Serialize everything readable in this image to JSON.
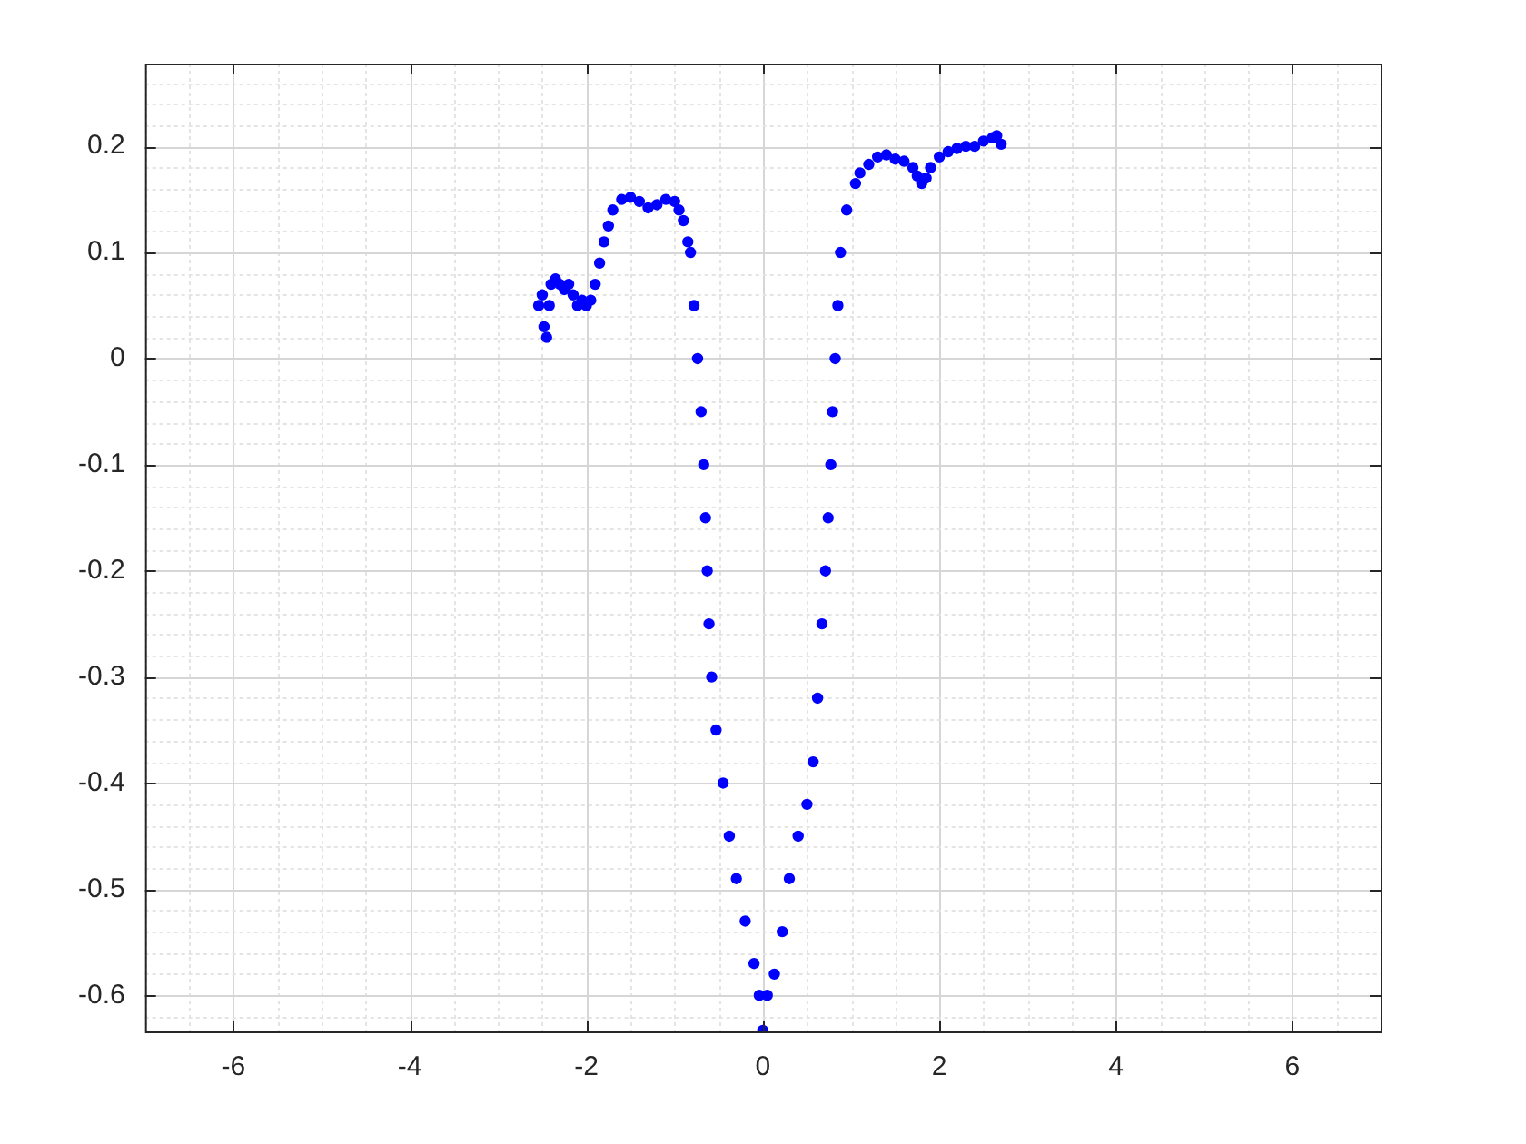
{
  "chart_data": {
    "type": "scatter",
    "marker": "circle",
    "grid": true,
    "xlim": [
      -7,
      7
    ],
    "ylim": [
      -0.634,
      0.278
    ],
    "xticks": [
      {
        "value": -7,
        "label": null
      },
      {
        "value": -6.5,
        "label": null
      },
      -6,
      {
        "value": -5.5,
        "label": null
      },
      {
        "value": -5,
        "label": null
      },
      {
        "value": -4.5,
        "label": null
      },
      -4,
      {
        "value": -3.5,
        "label": null
      },
      {
        "value": -3,
        "label": null
      },
      {
        "value": -2.5,
        "label": null
      },
      -2,
      {
        "value": -1.5,
        "label": null
      },
      {
        "value": -1,
        "label": null
      },
      {
        "value": -0.5,
        "label": null
      },
      0,
      {
        "value": 0.5,
        "label": null
      },
      {
        "value": 1,
        "label": null
      },
      {
        "value": 1.5,
        "label": null
      },
      2,
      {
        "value": 2.5,
        "label": null
      },
      {
        "value": 3,
        "label": null
      },
      {
        "value": 3.5,
        "label": null
      },
      4,
      {
        "value": 4.5,
        "label": null
      },
      {
        "value": 5,
        "label": null
      },
      {
        "value": 5.5,
        "label": null
      },
      6,
      {
        "value": 6.5,
        "label": null
      },
      {
        "value": 7,
        "label": null
      }
    ],
    "yticks": [
      {
        "value": -0.62,
        "label": null
      },
      -0.6,
      {
        "value": -0.58,
        "label": null
      },
      {
        "value": -0.56,
        "label": null
      },
      {
        "value": -0.54,
        "label": null
      },
      {
        "value": -0.52,
        "label": null
      },
      -0.5,
      {
        "value": -0.48,
        "label": null
      },
      {
        "value": -0.46,
        "label": null
      },
      {
        "value": -0.44,
        "label": null
      },
      {
        "value": -0.42,
        "label": null
      },
      -0.4,
      {
        "value": -0.38,
        "label": null
      },
      {
        "value": -0.36,
        "label": null
      },
      {
        "value": -0.34,
        "label": null
      },
      {
        "value": -0.32,
        "label": null
      },
      -0.3,
      {
        "value": -0.28,
        "label": null
      },
      {
        "value": -0.26,
        "label": null
      },
      {
        "value": -0.24,
        "label": null
      },
      {
        "value": -0.22,
        "label": null
      },
      -0.2,
      {
        "value": -0.18,
        "label": null
      },
      {
        "value": -0.16,
        "label": null
      },
      {
        "value": -0.14,
        "label": null
      },
      {
        "value": -0.12,
        "label": null
      },
      -0.1,
      {
        "value": -0.08,
        "label": null
      },
      {
        "value": -0.06,
        "label": null
      },
      {
        "value": -0.04,
        "label": null
      },
      {
        "value": -0.02,
        "label": null
      },
      0,
      {
        "value": 0.02,
        "label": null
      },
      {
        "value": 0.04,
        "label": null
      },
      {
        "value": 0.06,
        "label": null
      },
      {
        "value": 0.08,
        "label": null
      },
      0.1,
      {
        "value": 0.12,
        "label": null
      },
      {
        "value": 0.14,
        "label": null
      },
      {
        "value": 0.16,
        "label": null
      },
      {
        "value": 0.18,
        "label": null
      },
      0.2,
      {
        "value": 0.22,
        "label": null
      },
      {
        "value": 0.24,
        "label": null
      },
      {
        "value": 0.26,
        "label": null
      }
    ],
    "series": [
      {
        "color": "#0000ff",
        "x": [
          -2.54,
          -2.5,
          -2.48,
          -2.45,
          -2.42,
          -2.4,
          -2.35,
          -2.3,
          -2.25,
          -2.2,
          -2.15,
          -2.1,
          -2.05,
          -2.0,
          -1.95,
          -1.9,
          -1.85,
          -1.8,
          -1.75,
          -1.7,
          -1.6,
          -1.5,
          -1.4,
          -1.3,
          -1.2,
          -1.1,
          -1.0,
          -0.95,
          -0.9,
          -0.85,
          -0.82,
          -0.78,
          -0.74,
          -0.7,
          -0.67,
          -0.65,
          -0.63,
          -0.61,
          -0.58,
          -0.53,
          -0.45,
          -0.38,
          -0.3,
          -0.2,
          -0.1,
          -0.04,
          0,
          0.05,
          0.13,
          0.22,
          0.3,
          0.4,
          0.5,
          0.57,
          0.62,
          0.67,
          0.71,
          0.74,
          0.77,
          0.79,
          0.82,
          0.85,
          0.88,
          0.95,
          1.05,
          1.1,
          1.2,
          1.3,
          1.4,
          1.5,
          1.6,
          1.7,
          1.75,
          1.8,
          1.85,
          1.9,
          2.0,
          2.1,
          2.2,
          2.3,
          2.4,
          2.5,
          2.6,
          2.65,
          2.7
        ],
        "values": [
          0.05,
          0.06,
          0.03,
          0.02,
          0.05,
          0.07,
          0.075,
          0.07,
          0.065,
          0.07,
          0.06,
          0.05,
          0.055,
          0.05,
          0.055,
          0.07,
          0.09,
          0.11,
          0.125,
          0.14,
          0.15,
          0.152,
          0.148,
          0.142,
          0.145,
          0.15,
          0.148,
          0.14,
          0.13,
          0.11,
          0.1,
          0.05,
          0.0,
          -0.05,
          -0.1,
          -0.15,
          -0.2,
          -0.25,
          -0.3,
          -0.35,
          -0.4,
          -0.45,
          -0.49,
          -0.53,
          -0.57,
          -0.6,
          -0.633,
          -0.6,
          -0.58,
          -0.54,
          -0.49,
          -0.45,
          -0.42,
          -0.38,
          -0.32,
          -0.25,
          -0.2,
          -0.15,
          -0.1,
          -0.05,
          0.0,
          0.05,
          0.1,
          0.14,
          0.165,
          0.175,
          0.183,
          0.19,
          0.192,
          0.188,
          0.186,
          0.18,
          0.172,
          0.165,
          0.17,
          0.18,
          0.19,
          0.195,
          0.198,
          0.2,
          0.2,
          0.205,
          0.208,
          0.21,
          0.202
        ]
      }
    ]
  }
}
